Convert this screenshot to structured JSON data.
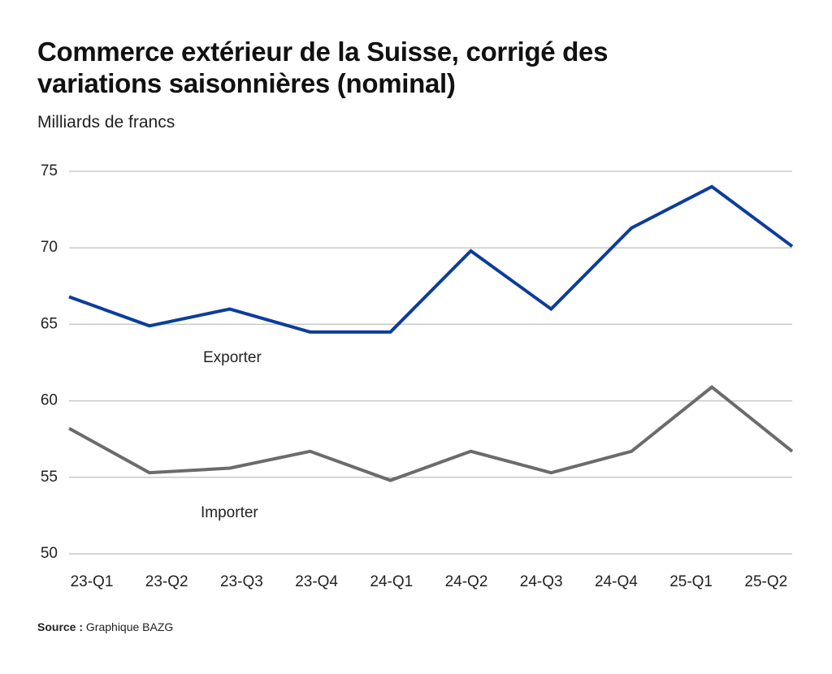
{
  "chart_data": {
    "type": "line",
    "title": "Commerce extérieur de la Suisse, corrigé des variations saisonnières (nominal)",
    "subtitle": "Milliards de francs",
    "categories": [
      "23-Q1",
      "23-Q2",
      "23-Q3",
      "23-Q4",
      "24-Q1",
      "24-Q2",
      "24-Q3",
      "24-Q4",
      "25-Q1",
      "25-Q2"
    ],
    "series": [
      {
        "name": "Exporter",
        "color": "#0b3d9c",
        "values": [
          66.8,
          64.9,
          66.0,
          64.5,
          64.5,
          69.8,
          66.0,
          71.3,
          74.0,
          70.1
        ]
      },
      {
        "name": "Importer",
        "color": "#6b6b6b",
        "values": [
          58.2,
          55.3,
          55.6,
          56.7,
          54.8,
          56.7,
          55.3,
          56.7,
          60.9,
          56.7
        ]
      }
    ],
    "ylim": [
      50,
      75
    ],
    "yticks": [
      50,
      55,
      60,
      65,
      70,
      75
    ],
    "grid": true,
    "source_label": "Source :",
    "source": "Graphique BAZG"
  }
}
